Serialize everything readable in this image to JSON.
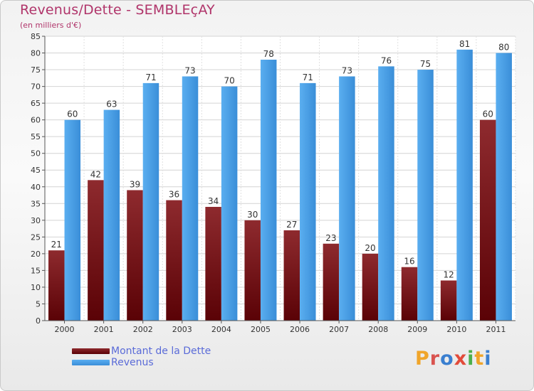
{
  "header": {
    "title": "Revenus/Dette - SEMBLEçAY",
    "subtitle": "(en milliers d'€)"
  },
  "legend": {
    "items": [
      {
        "label": "Montant de la Dette",
        "color": "#6e0e12"
      },
      {
        "label": "Revenus",
        "color": "#4a9fe6"
      }
    ]
  },
  "logo": {
    "text": "Proxiti",
    "letters": [
      {
        "ch": "P",
        "color": "#f0a52a"
      },
      {
        "ch": "r",
        "color": "#d9534f"
      },
      {
        "ch": "o",
        "color": "#3a7fd0"
      },
      {
        "ch": "x",
        "color": "#e24b3a"
      },
      {
        "ch": "i",
        "color": "#4bb04b"
      },
      {
        "ch": "t",
        "color": "#f0a52a"
      },
      {
        "ch": "i",
        "color": "#3a7fd0"
      }
    ]
  },
  "chart_data": {
    "type": "bar",
    "title": "Revenus/Dette - SEMBLEçAY",
    "subtitle": "(en milliers d'€)",
    "categories": [
      "2000",
      "2001",
      "2002",
      "2003",
      "2004",
      "2005",
      "2006",
      "2007",
      "2008",
      "2009",
      "2010",
      "2011"
    ],
    "series": [
      {
        "name": "Montant de la Dette",
        "values": [
          21,
          42,
          39,
          36,
          34,
          30,
          27,
          23,
          20,
          16,
          12,
          60
        ],
        "color": "#7a1a1e"
      },
      {
        "name": "Revenus",
        "values": [
          60,
          63,
          71,
          73,
          70,
          78,
          71,
          73,
          76,
          75,
          81,
          80
        ],
        "color": "#4a9fe6"
      }
    ],
    "ylim": [
      0,
      85
    ],
    "yticks": [
      0,
      5,
      10,
      15,
      20,
      25,
      30,
      35,
      40,
      45,
      50,
      55,
      60,
      65,
      70,
      75,
      80,
      85
    ],
    "grid": true,
    "legend_position": "bottom-left"
  }
}
